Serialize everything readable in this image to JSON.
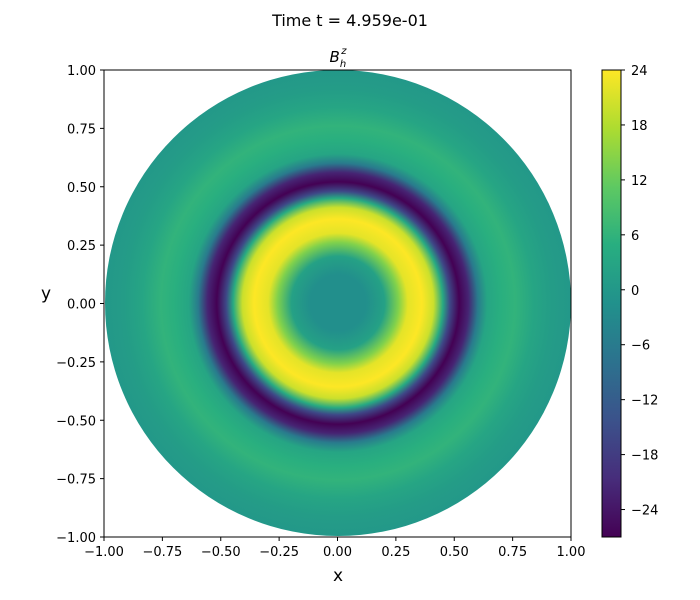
{
  "figure": {
    "suptitle": "Time t =  4.959e-01"
  },
  "chart_data": {
    "type": "heatmap",
    "title_base": "B",
    "title_sub": "h",
    "title_sup": "z",
    "xlabel": "x",
    "ylabel": "y",
    "xlim": [
      -1.0,
      1.0
    ],
    "ylim": [
      -1.0,
      1.0
    ],
    "xticks": [
      "−1.00",
      "−0.75",
      "−0.50",
      "−0.25",
      "0.00",
      "0.25",
      "0.50",
      "0.75",
      "1.00"
    ],
    "yticks": [
      "−1.00",
      "−0.75",
      "−0.50",
      "−0.25",
      "0.00",
      "0.25",
      "0.50",
      "0.75",
      "1.00"
    ],
    "domain": "disk of radius 1",
    "colormap": "viridis",
    "colorbar": {
      "min": -27,
      "max": 24,
      "ticks": [
        "−24",
        "−18",
        "−12",
        "−6",
        "0",
        "6",
        "12",
        "18",
        "24"
      ],
      "tick_values": [
        -24,
        -18,
        -12,
        -6,
        0,
        6,
        12,
        18,
        24
      ]
    },
    "radial_profile": [
      {
        "r": 0.0,
        "value": -2
      },
      {
        "r": 0.12,
        "value": -2
      },
      {
        "r": 0.2,
        "value": 2
      },
      {
        "r": 0.26,
        "value": 14
      },
      {
        "r": 0.3,
        "value": 22
      },
      {
        "r": 0.36,
        "value": 24
      },
      {
        "r": 0.41,
        "value": 20
      },
      {
        "r": 0.45,
        "value": 4
      },
      {
        "r": 0.48,
        "value": -16
      },
      {
        "r": 0.52,
        "value": -27
      },
      {
        "r": 0.56,
        "value": -22
      },
      {
        "r": 0.6,
        "value": -6
      },
      {
        "r": 0.64,
        "value": 3
      },
      {
        "r": 0.7,
        "value": 5
      },
      {
        "r": 0.76,
        "value": 6
      },
      {
        "r": 0.84,
        "value": 3
      },
      {
        "r": 0.92,
        "value": 1
      },
      {
        "r": 1.0,
        "value": 0
      }
    ]
  }
}
